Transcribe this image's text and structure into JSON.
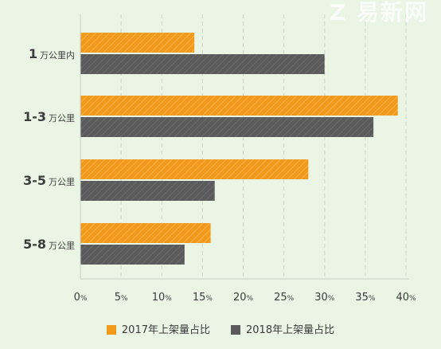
{
  "watermark": "Z 易新网",
  "colors": {
    "background": "#eaf5e6",
    "series_2017": "#f29a1b",
    "series_2018": "#5b5b5b",
    "grid": "#cfd8cd",
    "axis": "#c8cfc6",
    "text": "#3c3c3c"
  },
  "chart_data": {
    "type": "bar",
    "orientation": "horizontal",
    "categories": [
      {
        "main": "1",
        "suffix": "万公里内"
      },
      {
        "main": "1-3",
        "suffix": "万公里"
      },
      {
        "main": "3-5",
        "suffix": "万公里"
      },
      {
        "main": "5-8",
        "suffix": "万公里"
      }
    ],
    "series": [
      {
        "name": "2017年上架量占比",
        "color": "#f29a1b",
        "values": [
          14,
          39,
          28,
          16
        ]
      },
      {
        "name": "2018年上架量占比",
        "color": "#5b5b5b",
        "values": [
          30,
          36,
          16.5,
          12.8
        ]
      }
    ],
    "xlim": [
      0,
      40
    ],
    "xticks": [
      {
        "num": "0",
        "unit": "%"
      },
      {
        "num": "5",
        "unit": "%"
      },
      {
        "num": "10",
        "unit": "%"
      },
      {
        "num": "15",
        "unit": "%"
      },
      {
        "num": "20",
        "unit": "%"
      },
      {
        "num": "25",
        "unit": "%"
      },
      {
        "num": "30",
        "unit": "%"
      },
      {
        "num": "35",
        "unit": "%"
      },
      {
        "num": "40",
        "unit": "%"
      }
    ],
    "grid": true,
    "grid_style": "dashed",
    "legend_position": "bottom-center",
    "title": "",
    "xlabel": "",
    "ylabel": ""
  }
}
